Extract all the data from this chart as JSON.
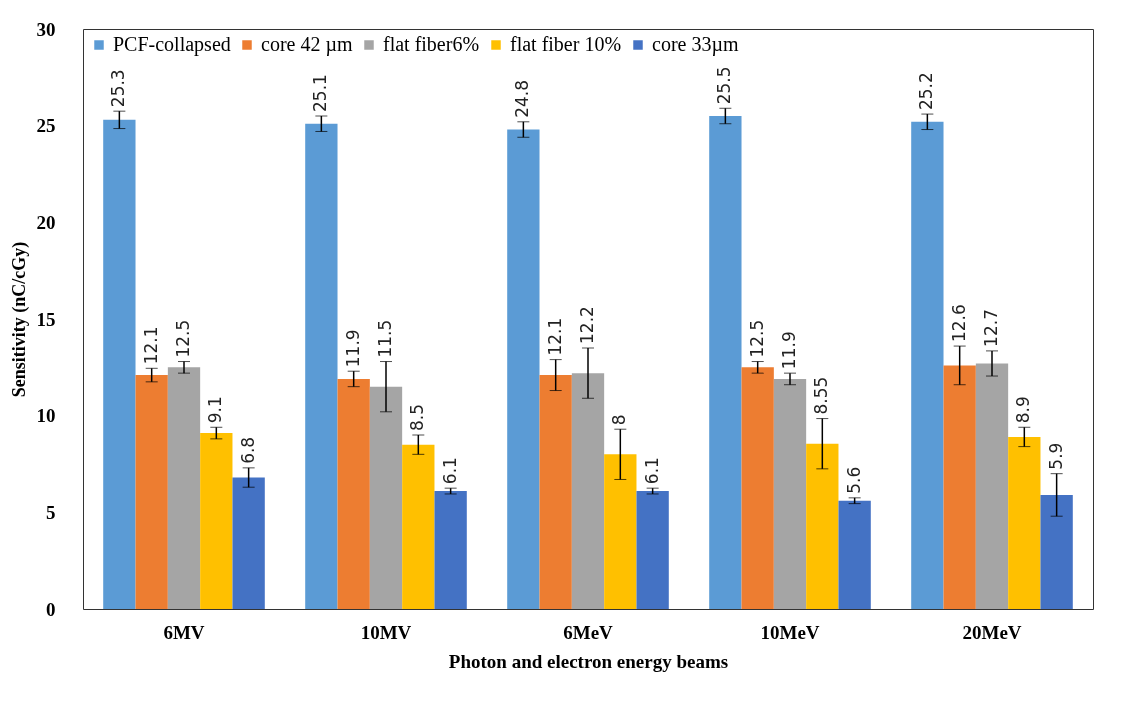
{
  "chart_data": {
    "type": "bar",
    "xlabel": "Photon and electron energy beams",
    "ylabel": "Sensitivity (nC/cGy)",
    "categories": [
      "6MV",
      "10MV",
      "6MeV",
      "10MeV",
      "20MeV"
    ],
    "series": [
      {
        "name": "PCF-collapsed",
        "color": "#5b9bd5",
        "values": [
          25.3,
          25.1,
          24.8,
          25.5,
          25.2
        ],
        "errors": [
          0.45,
          0.4,
          0.4,
          0.4,
          0.4
        ]
      },
      {
        "name": "core 42 µm",
        "color": "#ed7d31",
        "values": [
          12.1,
          11.9,
          12.1,
          12.5,
          12.6
        ],
        "errors": [
          0.35,
          0.4,
          0.8,
          0.3,
          1.0
        ]
      },
      {
        "name": "flat fiber6%",
        "color": "#a5a5a5",
        "values": [
          12.5,
          11.5,
          12.2,
          11.9,
          12.7
        ],
        "errors": [
          0.3,
          1.3,
          1.3,
          0.3,
          0.65
        ]
      },
      {
        "name": "flat fiber 10%",
        "color": "#ffc000",
        "values": [
          9.1,
          8.5,
          8,
          8.55,
          8.9
        ],
        "errors": [
          0.3,
          0.5,
          1.3,
          1.3,
          0.5
        ]
      },
      {
        "name": "core 33µm",
        "color": "#4472c4",
        "values": [
          6.8,
          6.1,
          6.1,
          5.6,
          5.9
        ],
        "errors": [
          0.5,
          0.15,
          0.15,
          0.15,
          1.1
        ]
      }
    ],
    "ylim": [
      0,
      30
    ],
    "yticks": [
      0,
      5,
      10,
      15,
      20,
      25,
      30
    ],
    "data_labels": true,
    "legend": "top left",
    "grid": false
  }
}
